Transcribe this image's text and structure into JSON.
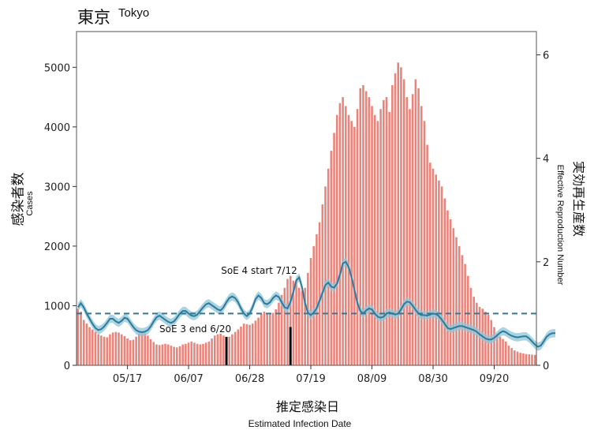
{
  "chart_data": {
    "type": "bar",
    "title": "東京",
    "subtitle": "Tokyo",
    "xlabel": "推定感染日",
    "xlabel_en": "Estimated Infection Date",
    "ylabel": "感染者数",
    "ylabel_en": "Cases",
    "y2label": "実効再生産数",
    "y2label_en": "Effective Reproduction Number",
    "ylim": [
      0,
      5600
    ],
    "y2lim": [
      0,
      6.45
    ],
    "yticks": [
      0,
      1000,
      2000,
      3000,
      4000,
      5000
    ],
    "y2ticks": [
      0,
      2,
      4,
      6
    ],
    "x_tick_labels": [
      "05/17",
      "06/07",
      "06/28",
      "07/19",
      "08/09",
      "08/30",
      "09/20"
    ],
    "x_tick_days": [
      17,
      38,
      59,
      80,
      101,
      122,
      143
    ],
    "reference_line": 1,
    "series": [
      {
        "name": "Cases",
        "color": "#ea847b",
        "values": [
          950,
          900,
          760,
          700,
          640,
          600,
          560,
          520,
          500,
          480,
          470,
          520,
          550,
          560,
          550,
          520,
          490,
          450,
          420,
          430,
          480,
          540,
          560,
          540,
          500,
          440,
          390,
          350,
          340,
          350,
          360,
          350,
          330,
          310,
          300,
          320,
          350,
          360,
          380,
          400,
          380,
          360,
          350,
          360,
          380,
          400,
          450,
          500,
          520,
          530,
          500,
          470,
          480,
          520,
          560,
          600,
          650,
          700,
          690,
          680,
          700,
          750,
          800,
          860,
          900,
          880,
          860,
          880,
          940,
          1050,
          1180,
          1300,
          1450,
          1500,
          1420,
          1400,
          1300,
          1250,
          1300,
          1550,
          1800,
          2000,
          2200,
          2400,
          2700,
          3000,
          3300,
          3600,
          3900,
          4200,
          4400,
          4500,
          4350,
          4200,
          4100,
          4000,
          4300,
          4650,
          4700,
          4600,
          4500,
          4350,
          4200,
          4100,
          4300,
          4450,
          4500,
          4250,
          4700,
          4900,
          5080,
          5000,
          4800,
          4500,
          4300,
          4550,
          4800,
          4650,
          4350,
          4100,
          3700,
          3400,
          3300,
          3200,
          3100,
          3000,
          2800,
          2600,
          2450,
          2300,
          2150,
          2000,
          1850,
          1700,
          1500,
          1300,
          1150,
          1050,
          980,
          950,
          900,
          850,
          760,
          640,
          530,
          480,
          440,
          400,
          330,
          290,
          250,
          230,
          210,
          200,
          190,
          185,
          180,
          175
        ]
      },
      {
        "name": "Effective Reproduction Number",
        "color": "#2f7a9a",
        "band_color": "#8ec6d8",
        "reproduction_number": [
          1.12,
          1.2,
          1.12,
          1.0,
          0.9,
          0.8,
          0.72,
          0.68,
          0.7,
          0.75,
          0.82,
          0.9,
          0.9,
          0.85,
          0.82,
          0.86,
          0.92,
          0.9,
          0.82,
          0.74,
          0.68,
          0.65,
          0.64,
          0.65,
          0.68,
          0.75,
          0.85,
          0.93,
          0.96,
          0.92,
          0.88,
          0.84,
          0.82,
          0.85,
          0.92,
          1.0,
          1.05,
          1.05,
          1.0,
          0.96,
          0.95,
          0.98,
          1.05,
          1.12,
          1.18,
          1.2,
          1.16,
          1.12,
          1.08,
          1.06,
          1.12,
          1.22,
          1.3,
          1.33,
          1.3,
          1.22,
          1.1,
          1.0,
          0.95,
          1.0,
          1.12,
          1.28,
          1.35,
          1.3,
          1.2,
          1.18,
          1.22,
          1.3,
          1.35,
          1.32,
          1.22,
          1.12,
          1.1,
          1.22,
          1.42,
          1.64,
          1.7,
          1.5,
          1.2,
          1.02,
          0.97,
          1.02,
          1.1,
          1.25,
          1.4,
          1.55,
          1.6,
          1.52,
          1.5,
          1.58,
          1.75,
          1.97,
          2.0,
          1.9,
          1.7,
          1.45,
          1.2,
          1.05,
          1.0,
          1.06,
          1.1,
          1.08,
          1.0,
          0.94,
          0.92,
          0.94,
          1.0,
          1.02,
          1.0,
          0.98,
          1.0,
          1.08,
          1.18,
          1.23,
          1.22,
          1.15,
          1.07,
          1.0,
          0.97,
          0.97,
          0.96,
          0.98,
          1.0,
          0.99,
          0.95,
          0.88,
          0.8,
          0.72,
          0.7,
          0.72,
          0.74,
          0.76,
          0.76,
          0.74,
          0.72,
          0.7,
          0.68,
          0.65,
          0.6,
          0.56,
          0.52,
          0.5,
          0.5,
          0.53,
          0.58,
          0.63,
          0.66,
          0.64,
          0.6,
          0.57,
          0.55,
          0.54,
          0.55,
          0.56,
          0.56,
          0.52,
          0.46,
          0.4,
          0.36,
          0.38,
          0.46,
          0.55,
          0.6,
          0.62,
          0.62
        ]
      }
    ],
    "annotations": [
      {
        "text": "SoE 3 end 6/20",
        "day": 51
      },
      {
        "text": "SoE 4 start 7/12",
        "day": 73
      }
    ],
    "grid": false
  }
}
